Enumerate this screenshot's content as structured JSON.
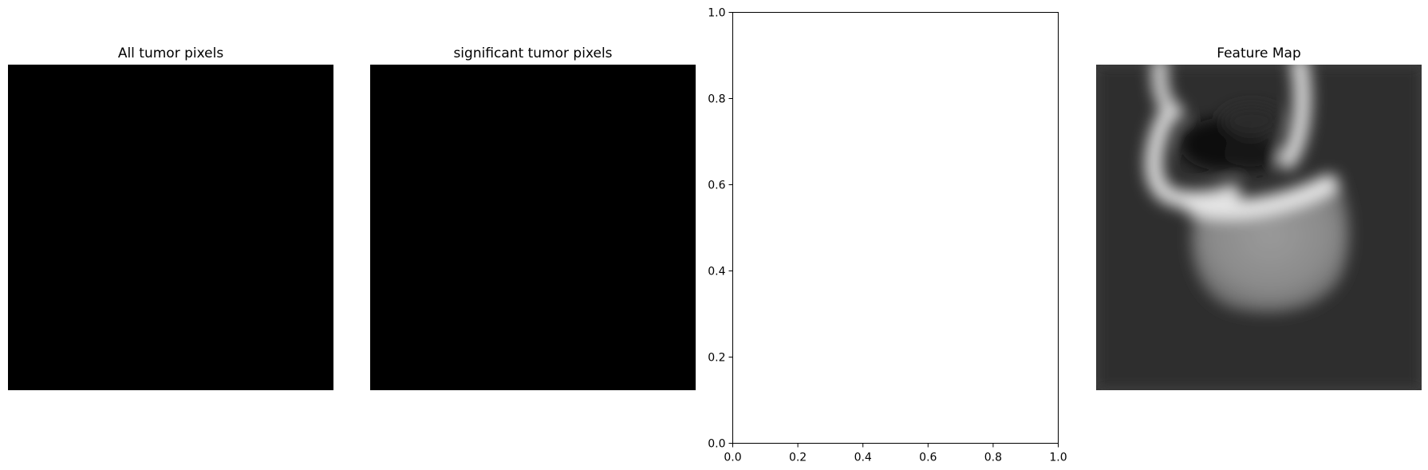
{
  "panels": [
    {
      "title": "All tumor pixels",
      "content": "black image"
    },
    {
      "title": "significant tumor pixels",
      "content": "black image"
    },
    {
      "title": "",
      "content": "empty axes"
    },
    {
      "title": "Feature Map",
      "content": "grayscale feature map"
    }
  ],
  "chart_data": [
    {
      "type": "image",
      "title": "All tumor pixels",
      "colormap": "gray",
      "values": "all zero (solid black)"
    },
    {
      "type": "image",
      "title": "significant tumor pixels",
      "colormap": "gray",
      "values": "all zero (solid black)"
    },
    {
      "type": "scatter",
      "title": "",
      "xlabel": "",
      "ylabel": "",
      "xlim": [
        0,
        1
      ],
      "ylim": [
        0,
        1
      ],
      "xticks": [
        "0.0",
        "0.2",
        "0.4",
        "0.6",
        "0.8",
        "1.0"
      ],
      "yticks": [
        "0.0",
        "0.2",
        "0.4",
        "0.6",
        "0.8",
        "1.0"
      ],
      "series": [],
      "grid": false
    },
    {
      "type": "image",
      "title": "Feature Map",
      "colormap": "gray",
      "values": "blurred grayscale feature map"
    }
  ]
}
